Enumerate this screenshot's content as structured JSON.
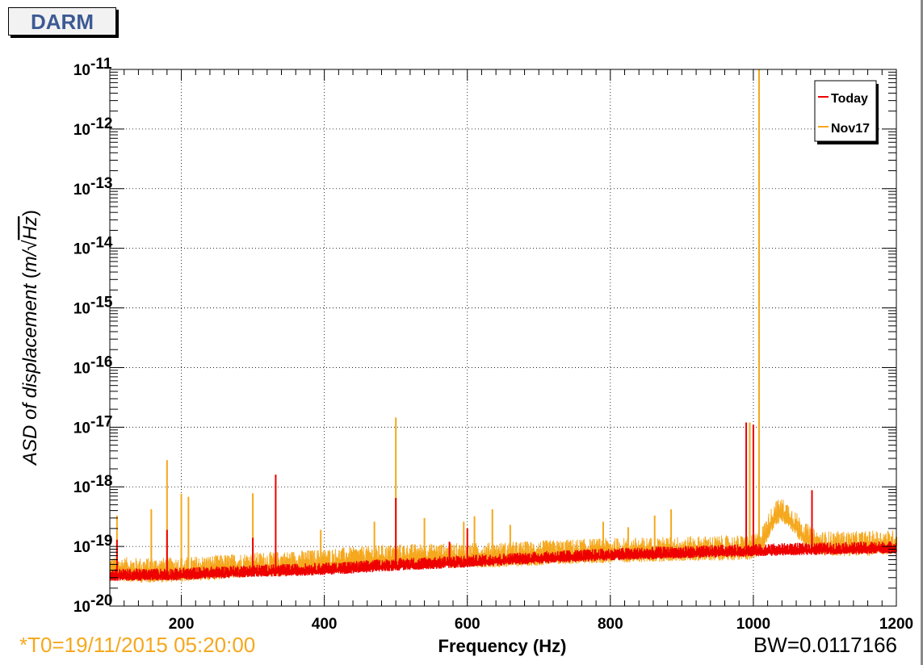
{
  "window": {
    "title": "DARM"
  },
  "footer": {
    "t0": "*T0=19/11/2015 05:20:00",
    "bw": "BW=0.0117166"
  },
  "chart_data": {
    "type": "line",
    "title": "DARM",
    "xlabel": "Frequency (Hz)",
    "ylabel": "ASD of displacement (m/√Hz)",
    "ylabel_parts": {
      "main": "ASD of displacement ",
      "open": "(",
      "unit": "m/",
      "root": "√",
      "radicand": "Hz",
      "close": ")"
    },
    "xlim": [
      100,
      1200
    ],
    "ylim": [
      1e-20,
      1e-11
    ],
    "yscale": "log",
    "grid": true,
    "legend_position": "top-right",
    "x_ticks": [
      {
        "value": 200,
        "label": "200"
      },
      {
        "value": 400,
        "label": "400"
      },
      {
        "value": 600,
        "label": "600"
      },
      {
        "value": 800,
        "label": "800"
      },
      {
        "value": 1000,
        "label": "1000"
      },
      {
        "value": 1200,
        "label": "1200"
      }
    ],
    "y_ticks": [
      {
        "exp": -11,
        "base": "10",
        "sup": "-11"
      },
      {
        "exp": -12,
        "base": "10",
        "sup": "-12"
      },
      {
        "exp": -13,
        "base": "10",
        "sup": "-13"
      },
      {
        "exp": -14,
        "base": "10",
        "sup": "-14"
      },
      {
        "exp": -15,
        "base": "10",
        "sup": "-15"
      },
      {
        "exp": -16,
        "base": "10",
        "sup": "-16"
      },
      {
        "exp": -17,
        "base": "10",
        "sup": "-17"
      },
      {
        "exp": -18,
        "base": "10",
        "sup": "-18"
      },
      {
        "exp": -19,
        "base": "10",
        "sup": "-19"
      },
      {
        "exp": -20,
        "base": "10",
        "sup": "-20"
      }
    ],
    "series": [
      {
        "name": "Nov17",
        "color": "#f5a81d",
        "points": [
          [
            100,
            3.6e-20
          ],
          [
            150,
            3.4e-20
          ],
          [
            200,
            3.5e-20
          ],
          [
            250,
            3.8e-20
          ],
          [
            300,
            4.2e-20
          ],
          [
            350,
            4.4e-20
          ],
          [
            400,
            4.8e-20
          ],
          [
            450,
            5.3e-20
          ],
          [
            500,
            5.8e-20
          ],
          [
            550,
            5.9e-20
          ],
          [
            600,
            6e-20
          ],
          [
            650,
            6.2e-20
          ],
          [
            700,
            6.6e-20
          ],
          [
            750,
            7e-20
          ],
          [
            800,
            7.3e-20
          ],
          [
            850,
            7.5e-20
          ],
          [
            900,
            7.8e-20
          ],
          [
            950,
            8e-20
          ],
          [
            1000,
            8.2e-20
          ],
          [
            1010,
            1e-19
          ],
          [
            1030,
            3.1e-19
          ],
          [
            1040,
            3.4e-19
          ],
          [
            1050,
            2.8e-19
          ],
          [
            1070,
            1.4e-19
          ],
          [
            1090,
            9.5e-20
          ],
          [
            1150,
            9.5e-20
          ],
          [
            1200,
            1e-19
          ]
        ],
        "peaks": [
          [
            110,
            3.3e-19
          ],
          [
            158,
            4.2e-19
          ],
          [
            180,
            2.8e-18
          ],
          [
            200,
            7.6e-19
          ],
          [
            210,
            6.8e-19
          ],
          [
            300,
            7.8e-19
          ],
          [
            395,
            1.9e-19
          ],
          [
            470,
            2.6e-19
          ],
          [
            500,
            1.45e-17
          ],
          [
            540,
            3e-19
          ],
          [
            595,
            2.6e-19
          ],
          [
            610,
            3.2e-19
          ],
          [
            635,
            4.2e-19
          ],
          [
            660,
            2.3e-19
          ],
          [
            790,
            2.6e-19
          ],
          [
            825,
            2.1e-19
          ],
          [
            862,
            3.3e-19
          ],
          [
            885,
            4.2e-19
          ],
          [
            995,
            1.2e-17
          ],
          [
            1008,
            1e-11
          ],
          [
            1200,
            1.45e-19
          ]
        ]
      },
      {
        "name": "Today",
        "color": "#ee0000",
        "points": [
          [
            100,
            3.1e-20
          ],
          [
            150,
            3.1e-20
          ],
          [
            200,
            3.2e-20
          ],
          [
            250,
            3.4e-20
          ],
          [
            300,
            3.6e-20
          ],
          [
            350,
            3.7e-20
          ],
          [
            400,
            3.9e-20
          ],
          [
            450,
            4.2e-20
          ],
          [
            500,
            4.6e-20
          ],
          [
            550,
            4.9e-20
          ],
          [
            600,
            5.2e-20
          ],
          [
            650,
            5.6e-20
          ],
          [
            700,
            6e-20
          ],
          [
            750,
            6.4e-20
          ],
          [
            800,
            6.8e-20
          ],
          [
            850,
            7.1e-20
          ],
          [
            900,
            7.4e-20
          ],
          [
            950,
            7.7e-20
          ],
          [
            1000,
            8e-20
          ],
          [
            1050,
            8.3e-20
          ],
          [
            1100,
            8.5e-20
          ],
          [
            1150,
            8.7e-20
          ],
          [
            1200,
            9e-20
          ]
        ],
        "peaks": [
          [
            110,
            1.3e-19
          ],
          [
            180,
            1.9e-19
          ],
          [
            300,
            1.4e-19
          ],
          [
            332,
            1.6e-18
          ],
          [
            500,
            6.5e-19
          ],
          [
            575,
            1.2e-19
          ],
          [
            600,
            2e-19
          ],
          [
            990,
            1.2e-17
          ],
          [
            1000,
            1.1e-17
          ],
          [
            1082,
            8.8e-19
          ]
        ]
      }
    ]
  }
}
